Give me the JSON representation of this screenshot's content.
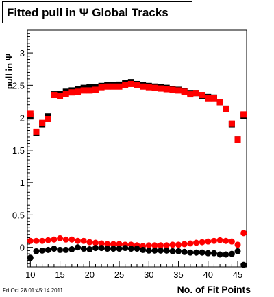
{
  "footer": {
    "timestamp": "Fri Oct 28 01:45:14 2011"
  },
  "chart_data": {
    "type": "scatter",
    "title": "Fitted pull in  Ψ   Global Tracks",
    "xlabel": "No. of Fit Points",
    "ylabel": "pull in Ψ",
    "xlim": [
      9.5,
      46.5
    ],
    "ylim": [
      -0.3,
      3.35
    ],
    "xticks": [
      10,
      15,
      20,
      25,
      30,
      35,
      40,
      45
    ],
    "yticks": [
      0,
      0.5,
      1,
      1.5,
      2,
      2.5,
      3
    ],
    "ytick_labels": [
      "0",
      "0.5",
      "1",
      "1.5",
      "2",
      "2.5",
      "3"
    ],
    "grid": false,
    "legend": "none",
    "series": [
      {
        "color": "#000000",
        "marker": "square",
        "x": [
          10,
          11,
          12,
          13,
          14,
          15,
          16,
          17,
          18,
          19,
          20,
          21,
          22,
          23,
          24,
          25,
          26,
          27,
          28,
          29,
          30,
          31,
          32,
          33,
          34,
          35,
          36,
          37,
          38,
          39,
          40,
          41,
          42,
          43,
          44,
          45,
          46
        ],
        "y": [
          2.02,
          1.76,
          1.9,
          2.02,
          2.36,
          2.37,
          2.4,
          2.42,
          2.44,
          2.46,
          2.47,
          2.47,
          2.49,
          2.5,
          2.5,
          2.51,
          2.53,
          2.55,
          2.52,
          2.5,
          2.49,
          2.48,
          2.47,
          2.46,
          2.44,
          2.43,
          2.41,
          2.38,
          2.38,
          2.34,
          2.32,
          2.31,
          2.24,
          2.14,
          1.9,
          1.66,
          2.03
        ]
      },
      {
        "color": "#ff0000",
        "marker": "square",
        "x": [
          10,
          11,
          12,
          13,
          14,
          15,
          16,
          17,
          18,
          19,
          20,
          21,
          22,
          23,
          24,
          25,
          26,
          27,
          28,
          29,
          30,
          31,
          32,
          33,
          34,
          35,
          36,
          37,
          38,
          39,
          40,
          41,
          42,
          43,
          44,
          45,
          46
        ],
        "y": [
          2.06,
          1.78,
          1.92,
          1.98,
          2.35,
          2.33,
          2.37,
          2.39,
          2.4,
          2.42,
          2.42,
          2.43,
          2.47,
          2.48,
          2.48,
          2.48,
          2.5,
          2.52,
          2.5,
          2.48,
          2.47,
          2.46,
          2.45,
          2.44,
          2.43,
          2.42,
          2.4,
          2.36,
          2.38,
          2.35,
          2.3,
          2.3,
          2.24,
          2.13,
          1.91,
          1.66,
          2.05
        ]
      },
      {
        "color": "#ff0000",
        "marker": "circle",
        "x": [
          10,
          11,
          12,
          13,
          14,
          15,
          16,
          17,
          18,
          19,
          20,
          21,
          22,
          23,
          24,
          25,
          26,
          27,
          28,
          29,
          30,
          31,
          32,
          33,
          34,
          35,
          36,
          37,
          38,
          39,
          40,
          41,
          42,
          43,
          44,
          45,
          46
        ],
        "y": [
          0.1,
          0.1,
          0.1,
          0.11,
          0.12,
          0.14,
          0.12,
          0.12,
          0.1,
          0.1,
          0.08,
          0.07,
          0.06,
          0.05,
          0.05,
          0.05,
          0.04,
          0.04,
          0.03,
          0.02,
          0.03,
          0.03,
          0.03,
          0.03,
          0.04,
          0.04,
          0.05,
          0.06,
          0.07,
          0.08,
          0.09,
          0.1,
          0.11,
          0.1,
          0.09,
          0.04,
          0.22
        ]
      },
      {
        "color": "#000000",
        "marker": "circle",
        "x": [
          10,
          11,
          12,
          13,
          14,
          15,
          16,
          17,
          18,
          19,
          20,
          21,
          22,
          23,
          24,
          25,
          26,
          27,
          28,
          29,
          30,
          31,
          32,
          33,
          34,
          35,
          36,
          37,
          38,
          39,
          40,
          41,
          42,
          43,
          44,
          45,
          46
        ],
        "y": [
          -0.16,
          -0.06,
          -0.05,
          -0.04,
          -0.02,
          -0.04,
          -0.04,
          -0.03,
          0.0,
          -0.02,
          -0.03,
          -0.01,
          -0.01,
          -0.02,
          -0.02,
          -0.02,
          -0.01,
          -0.02,
          -0.02,
          -0.04,
          -0.05,
          -0.05,
          -0.05,
          -0.05,
          -0.06,
          -0.06,
          -0.07,
          -0.08,
          -0.08,
          -0.08,
          -0.09,
          -0.09,
          -0.11,
          -0.11,
          -0.1,
          -0.06,
          -0.27
        ]
      }
    ]
  }
}
